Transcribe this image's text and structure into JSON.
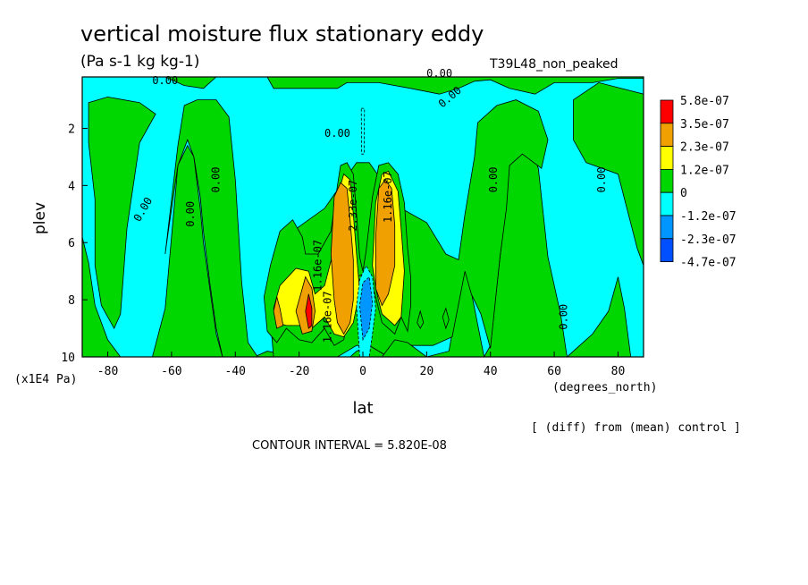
{
  "chart_data": {
    "type": "heatmap",
    "title": "vertical moisture flux stationary eddy",
    "units": "(Pa s-1 kg kg-1)",
    "run_label": "T39L48_non_peaked",
    "xlabel": "lat",
    "x_units": "(degrees_north)",
    "ylabel": "plev",
    "y_units": "(x1E4 Pa)",
    "xlim": [
      -88,
      88
    ],
    "ylim": [
      10,
      0.2
    ],
    "xticks": [
      -80,
      -60,
      -40,
      -20,
      0,
      20,
      40,
      60,
      80
    ],
    "yticks": [
      2,
      4,
      6,
      8,
      10
    ],
    "contour_interval_text": "CONTOUR INTERVAL = 5.820E-08",
    "diff_note": "[ (diff) from (mean) control ]",
    "colorbar": {
      "labels": [
        "5.8e-07",
        "3.5e-07",
        "2.3e-07",
        "1.2e-07",
        "0",
        "-1.2e-07",
        "-2.3e-07",
        "-4.7e-07"
      ],
      "colors": [
        "#ff0000",
        "#f0a000",
        "#ffff00",
        "#00d600",
        "#00ffff",
        "#0096ff",
        "#0050ff"
      ]
    },
    "contour_labels": [
      "0.00",
      "0.00",
      "0.00",
      "0.00",
      "0.00",
      "0.00",
      "0.00",
      "0.00",
      "0.00",
      "1.16e-07",
      "2.33e-07",
      "1.16e-07",
      "1.16e-07"
    ],
    "regions": [
      {
        "level": "0",
        "points": [
          [
            -88,
            0.2
          ],
          [
            88,
            0.2
          ],
          [
            88,
            10
          ],
          [
            -88,
            10
          ]
        ]
      },
      {
        "level": "-1.2e-07",
        "points": [
          [
            -88,
            0.2
          ],
          [
            -62,
            0.2
          ],
          [
            -56,
            0.5
          ],
          [
            -50,
            0.6
          ],
          [
            -46,
            0.2
          ],
          [
            -30,
            0.2
          ],
          [
            -28,
            0.6
          ],
          [
            -15,
            0.6
          ],
          [
            -8,
            0.6
          ],
          [
            -5,
            0.4
          ],
          [
            5,
            0.4
          ],
          [
            15,
            0.6
          ],
          [
            24,
            0.8
          ],
          [
            30,
            0.6
          ],
          [
            35,
            0.35
          ],
          [
            40,
            0.3
          ],
          [
            46,
            0.6
          ],
          [
            54,
            0.8
          ],
          [
            60,
            0.4
          ],
          [
            72,
            0.4
          ],
          [
            80,
            0.25
          ],
          [
            88,
            0.25
          ],
          [
            88,
            0.8
          ],
          [
            74,
            0.4
          ],
          [
            66,
            1.0
          ],
          [
            66,
            2.4
          ],
          [
            70,
            3.2
          ],
          [
            80,
            3.6
          ],
          [
            86,
            6.2
          ],
          [
            88,
            6.8
          ],
          [
            88,
            10
          ],
          [
            84,
            10
          ],
          [
            82,
            8.3
          ],
          [
            80,
            7.2
          ],
          [
            77,
            8.4
          ],
          [
            72,
            9.2
          ],
          [
            64,
            10
          ],
          [
            62,
            8.5
          ],
          [
            58,
            6.5
          ],
          [
            55,
            3.4
          ],
          [
            52,
            2.5
          ],
          [
            46,
            2.9
          ],
          [
            45,
            4.7
          ],
          [
            43,
            6.5
          ],
          [
            40,
            9.6
          ],
          [
            38,
            10
          ],
          [
            35,
            8.3
          ],
          [
            32,
            6.6
          ],
          [
            27,
            9.8
          ],
          [
            20,
            10
          ],
          [
            8,
            10
          ],
          [
            2,
            9.6
          ],
          [
            -2,
            9.8
          ],
          [
            -4,
            10
          ],
          [
            -20,
            10
          ],
          [
            -30,
            9.8
          ],
          [
            -34,
            10
          ],
          [
            -44,
            10
          ],
          [
            -46,
            9.2
          ],
          [
            -48,
            7.6
          ],
          [
            -50,
            6.0
          ],
          [
            -51,
            4.8
          ],
          [
            -53,
            3.0
          ],
          [
            -55,
            2.6
          ],
          [
            -58,
            3.3
          ],
          [
            -60,
            5.8
          ],
          [
            -62,
            8.3
          ],
          [
            -66,
            10
          ],
          [
            -76,
            10
          ],
          [
            -80,
            9.4
          ],
          [
            -84,
            8.2
          ],
          [
            -86,
            6.7
          ],
          [
            -88,
            5.8
          ]
        ]
      },
      {
        "level": "0",
        "points": [
          [
            -86,
            1.1
          ],
          [
            -80,
            0.9
          ],
          [
            -70,
            1.1
          ],
          [
            -65,
            1.5
          ],
          [
            -70,
            2.5
          ],
          [
            -74,
            5.5
          ],
          [
            -76,
            8.5
          ],
          [
            -78,
            9.0
          ],
          [
            -82,
            8.2
          ],
          [
            -84,
            6.8
          ],
          [
            -84,
            4.5
          ],
          [
            -86,
            2.5
          ]
        ]
      },
      {
        "level": "0",
        "points": [
          [
            -56,
            1.2
          ],
          [
            -52,
            1.0
          ],
          [
            -46,
            1.0
          ],
          [
            -42,
            1.6
          ],
          [
            -40,
            3.8
          ],
          [
            -38,
            7.4
          ],
          [
            -36,
            9.5
          ],
          [
            -33,
            10
          ],
          [
            -28,
            10
          ],
          [
            -29,
            8.7
          ],
          [
            -30,
            7.6
          ],
          [
            -28,
            6.4
          ],
          [
            -22,
            5.6
          ],
          [
            -12,
            4.8
          ],
          [
            -2,
            3.2
          ],
          [
            2,
            3.2
          ],
          [
            12,
            4.8
          ],
          [
            20,
            5.3
          ],
          [
            26,
            6.4
          ],
          [
            30,
            6.6
          ],
          [
            32,
            5.0
          ],
          [
            35,
            3.0
          ],
          [
            36,
            1.8
          ],
          [
            42,
            1.2
          ],
          [
            48,
            1.0
          ],
          [
            55,
            1.4
          ],
          [
            58,
            2.4
          ],
          [
            56,
            3.4
          ],
          [
            50,
            2.9
          ],
          [
            46,
            3.3
          ],
          [
            45,
            4.8
          ],
          [
            43,
            6.5
          ],
          [
            40,
            9.7
          ],
          [
            37,
            8.5
          ],
          [
            34,
            7.8
          ],
          [
            32,
            7.0
          ],
          [
            28,
            9.3
          ],
          [
            22,
            9.6
          ],
          [
            14,
            9.6
          ],
          [
            8,
            10
          ],
          [
            2,
            9.6
          ],
          [
            -2,
            9.6
          ],
          [
            -8,
            10
          ],
          [
            -18,
            10
          ],
          [
            -30,
            10
          ],
          [
            -34,
            10
          ],
          [
            -44,
            10
          ],
          [
            -46,
            9.0
          ],
          [
            -48,
            7.4
          ],
          [
            -50,
            5.6
          ],
          [
            -51,
            4.4
          ],
          [
            -53,
            3.0
          ],
          [
            -55,
            2.4
          ],
          [
            -58,
            3.3
          ],
          [
            -61,
            5.6
          ],
          [
            -62,
            6.4
          ],
          [
            -58,
            2.6
          ]
        ]
      },
      {
        "level": "0",
        "points": [
          [
            6,
            10
          ],
          [
            10,
            9.4
          ],
          [
            14,
            9.5
          ],
          [
            20,
            10
          ]
        ]
      },
      {
        "level": "1.2e-07",
        "points": [
          [
            -31,
            7.9
          ],
          [
            -29,
            6.8
          ],
          [
            -26,
            5.6
          ],
          [
            -22,
            5.2
          ],
          [
            -19,
            5.8
          ],
          [
            -18,
            6.4
          ],
          [
            -14,
            6.4
          ],
          [
            -10,
            5.6
          ],
          [
            -8,
            4.0
          ],
          [
            -7,
            3.3
          ],
          [
            -5,
            3.2
          ],
          [
            -3,
            3.6
          ],
          [
            -2,
            5.0
          ],
          [
            -1,
            6.5
          ],
          [
            0,
            7.0
          ],
          [
            1,
            6.3
          ],
          [
            3,
            4.4
          ],
          [
            5,
            3.3
          ],
          [
            8,
            3.2
          ],
          [
            11,
            3.6
          ],
          [
            13,
            4.6
          ],
          [
            14,
            6.2
          ],
          [
            15,
            7.2
          ],
          [
            15,
            8.2
          ],
          [
            14,
            9.1
          ],
          [
            12,
            8.6
          ],
          [
            10,
            9.2
          ],
          [
            6,
            8.8
          ],
          [
            2,
            7.0
          ],
          [
            -2,
            7.2
          ],
          [
            -6,
            9.4
          ],
          [
            -9,
            9.6
          ],
          [
            -12,
            9.0
          ],
          [
            -16,
            9.5
          ],
          [
            -20,
            9.4
          ],
          [
            -24,
            9.0
          ],
          [
            -27,
            9.5
          ],
          [
            -30,
            9.1
          ]
        ]
      },
      {
        "level": "1.2e-07",
        "points": [
          [
            17,
            8.8
          ],
          [
            18,
            8.4
          ],
          [
            19,
            8.8
          ],
          [
            18,
            9.0
          ]
        ]
      },
      {
        "level": "1.2e-07",
        "points": [
          [
            25,
            8.6
          ],
          [
            26,
            8.3
          ],
          [
            27,
            8.7
          ],
          [
            26,
            9.0
          ]
        ]
      },
      {
        "level": "2.3e-07",
        "points": [
          [
            -28,
            8.3
          ],
          [
            -26,
            7.5
          ],
          [
            -21,
            6.9
          ],
          [
            -17,
            7.0
          ],
          [
            -15,
            7.8
          ],
          [
            -12,
            7.5
          ],
          [
            -9,
            6.2
          ],
          [
            -8,
            4.4
          ],
          [
            -6,
            3.6
          ],
          [
            -4,
            3.8
          ],
          [
            -3,
            5.0
          ],
          [
            -2,
            6.4
          ],
          [
            -1,
            7.7
          ],
          [
            -3,
            8.8
          ],
          [
            -6,
            9.3
          ],
          [
            -9,
            9.2
          ],
          [
            -12,
            8.6
          ],
          [
            -16,
            9.0
          ],
          [
            -20,
            8.9
          ],
          [
            -24,
            8.9
          ],
          [
            -27,
            8.8
          ]
        ]
      },
      {
        "level": "2.3e-07",
        "points": [
          [
            3,
            6.8
          ],
          [
            4,
            4.6
          ],
          [
            6,
            3.6
          ],
          [
            8,
            3.5
          ],
          [
            11,
            4.2
          ],
          [
            12,
            5.5
          ],
          [
            13,
            7.0
          ],
          [
            12,
            8.6
          ],
          [
            10,
            8.9
          ],
          [
            6,
            8.5
          ],
          [
            4,
            7.6
          ]
        ]
      },
      {
        "level": "3.5e-07",
        "points": [
          [
            -28,
            8.4
          ],
          [
            -27,
            7.9
          ],
          [
            -26,
            8.3
          ],
          [
            -25,
            8.9
          ],
          [
            -27,
            9.0
          ]
        ]
      },
      {
        "level": "3.5e-07",
        "points": [
          [
            -21,
            8.4
          ],
          [
            -18,
            7.2
          ],
          [
            -16,
            7.6
          ],
          [
            -15,
            8.4
          ],
          [
            -16,
            9.1
          ],
          [
            -19,
            9.2
          ]
        ]
      },
      {
        "level": "3.5e-07",
        "points": [
          [
            -10,
            6.4
          ],
          [
            -9,
            4.4
          ],
          [
            -7,
            3.9
          ],
          [
            -5,
            4.1
          ],
          [
            -4,
            5.2
          ],
          [
            -3,
            6.6
          ],
          [
            -3,
            8.0
          ],
          [
            -4,
            8.8
          ],
          [
            -6,
            9.2
          ],
          [
            -8,
            8.8
          ],
          [
            -9,
            8.0
          ]
        ]
      },
      {
        "level": "3.5e-07",
        "points": [
          [
            4,
            5.8
          ],
          [
            5,
            4.1
          ],
          [
            7,
            3.8
          ],
          [
            9,
            4.1
          ],
          [
            10,
            5.4
          ],
          [
            10,
            6.8
          ],
          [
            8,
            7.8
          ],
          [
            6,
            8.2
          ],
          [
            4,
            7.6
          ]
        ]
      },
      {
        "level": "5.8e-07",
        "points": [
          [
            -18,
            8.4
          ],
          [
            -17,
            7.8
          ],
          [
            -16,
            8.3
          ],
          [
            -16,
            8.9
          ],
          [
            -17,
            9.0
          ]
        ]
      },
      {
        "level": "-1.2e-07",
        "points": [
          [
            -1,
            10
          ],
          [
            -2,
            8.2
          ],
          [
            -1,
            7.3
          ],
          [
            1,
            6.8
          ],
          [
            3,
            7.2
          ],
          [
            4,
            8.3
          ],
          [
            3,
            9.2
          ],
          [
            2,
            10
          ]
        ]
      },
      {
        "level": "-2.3e-07",
        "points": [
          [
            0,
            9.4
          ],
          [
            -1,
            8.2
          ],
          [
            0,
            7.4
          ],
          [
            2,
            7.2
          ],
          [
            3,
            8.1
          ],
          [
            2,
            9.0
          ]
        ]
      },
      {
        "level": "-1.2e-07",
        "points": [
          [
            -0.5,
            1.3
          ],
          [
            0.5,
            1.3
          ],
          [
            0.4,
            2.9
          ],
          [
            -0.4,
            2.9
          ]
        ]
      }
    ]
  }
}
